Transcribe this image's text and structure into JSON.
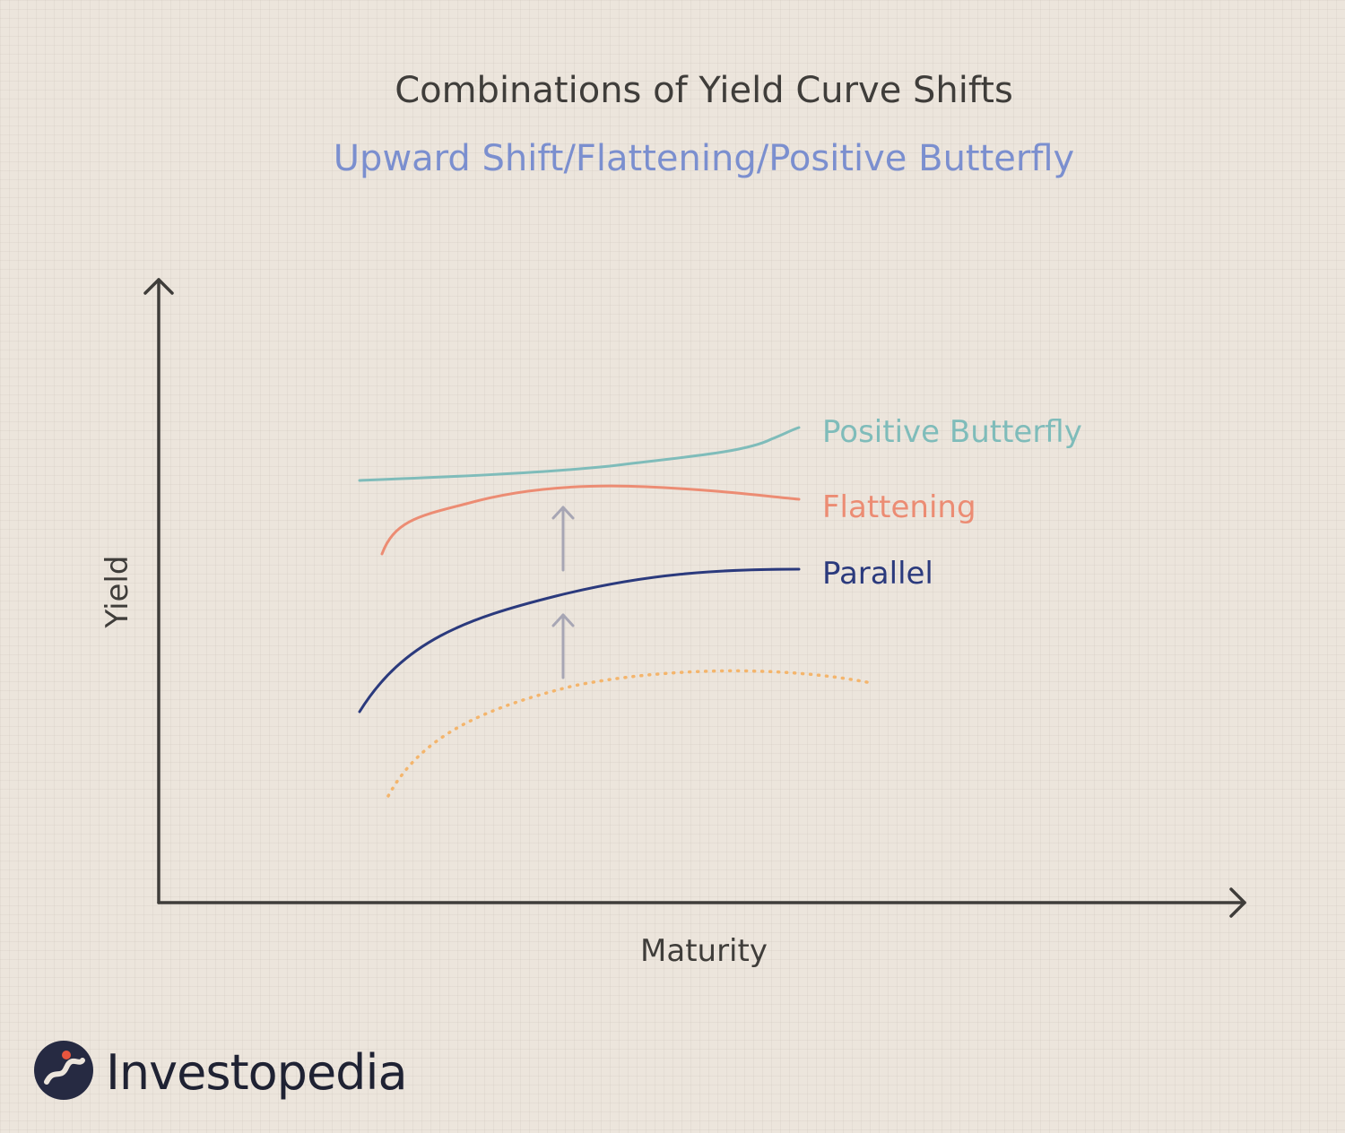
{
  "title": "Combinations of Yield Curve Shifts",
  "subtitle": "Upward Shift/Flattening/Positive Butterfly",
  "axes": {
    "x_label": "Maturity",
    "y_label": "Yield"
  },
  "curves": [
    {
      "label": "Positive Butterfly",
      "color": "#7fbcba",
      "style": "solid"
    },
    {
      "label": "Flattening",
      "color": "#ec8c73",
      "style": "solid"
    },
    {
      "label": "Parallel",
      "color": "#2b3a7d",
      "style": "solid"
    },
    {
      "label": "",
      "color": "#f4b56c",
      "style": "dotted"
    }
  ],
  "colors": {
    "axis": "#3f3d3a",
    "shift_arrow": "#a7a6b4",
    "title": "#3f3d3a",
    "subtitle": "#7b8fcf"
  },
  "logo": {
    "wordmark": "Investopedia",
    "icon": "investopedia-i-icon"
  }
}
